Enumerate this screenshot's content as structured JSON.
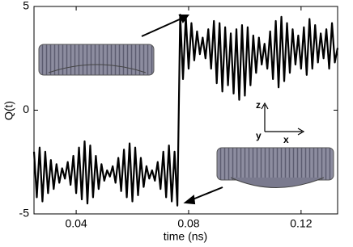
{
  "chart_data": {
    "type": "line",
    "xlabel": "time (ns)",
    "ylabel": "Q(t)",
    "x": [
      0.025,
      0.026,
      0.027,
      0.028,
      0.029,
      0.03,
      0.031,
      0.032,
      0.033,
      0.034,
      0.035,
      0.036,
      0.037,
      0.038,
      0.039,
      0.04,
      0.041,
      0.042,
      0.043,
      0.044,
      0.045,
      0.046,
      0.047,
      0.048,
      0.049,
      0.05,
      0.051,
      0.052,
      0.053,
      0.054,
      0.055,
      0.056,
      0.057,
      0.058,
      0.059,
      0.06,
      0.061,
      0.062,
      0.063,
      0.064,
      0.065,
      0.066,
      0.067,
      0.068,
      0.069,
      0.07,
      0.071,
      0.072,
      0.073,
      0.074,
      0.075,
      0.076,
      0.077,
      0.078,
      0.079,
      0.08,
      0.081,
      0.082,
      0.083,
      0.084,
      0.085,
      0.086,
      0.087,
      0.088,
      0.089,
      0.09,
      0.091,
      0.092,
      0.093,
      0.094,
      0.095,
      0.096,
      0.097,
      0.098,
      0.099,
      0.1,
      0.101,
      0.102,
      0.103,
      0.104,
      0.105,
      0.106,
      0.107,
      0.108,
      0.109,
      0.11,
      0.111,
      0.112,
      0.113,
      0.114,
      0.115,
      0.116,
      0.117,
      0.118,
      0.119,
      0.12,
      0.121,
      0.122,
      0.123,
      0.124,
      0.125,
      0.126,
      0.127,
      0.128,
      0.129,
      0.13,
      0.131,
      0.132,
      0.133
    ],
    "values": [
      -2.0,
      -4.2,
      -1.8,
      -4.4,
      -2.0,
      -4.0,
      -2.4,
      -3.8,
      -2.6,
      -3.5,
      -2.8,
      -3.3,
      -2.5,
      -3.6,
      -2.2,
      -4.0,
      -1.8,
      -4.3,
      -1.5,
      -4.5,
      -1.7,
      -4.2,
      -2.2,
      -3.8,
      -2.6,
      -3.4,
      -2.9,
      -3.2,
      -2.7,
      -3.5,
      -2.3,
      -3.9,
      -1.9,
      -4.2,
      -1.6,
      -4.4,
      -1.8,
      -4.1,
      -2.3,
      -3.7,
      -2.7,
      -3.3,
      -2.9,
      -3.4,
      -2.5,
      -3.8,
      -2.0,
      -4.2,
      -1.7,
      -4.4,
      -2.0,
      -4.6,
      4.6,
      1.5,
      4.5,
      2.0,
      4.2,
      2.4,
      3.8,
      2.7,
      3.5,
      2.5,
      3.9,
      2.0,
      4.3,
      1.3,
      4.2,
      0.9,
      4.0,
      1.2,
      3.7,
      0.8,
      3.9,
      0.5,
      4.1,
      0.7,
      4.0,
      1.2,
      3.6,
      1.8,
      3.5,
      2.2,
      3.2,
      2.0,
      3.8,
      1.5,
      4.3,
      1.1,
      4.5,
      1.4,
      4.2,
      1.8,
      3.9,
      2.2,
      3.6,
      2.0,
      4.0,
      1.7,
      4.4,
      2.0,
      4.1,
      2.3,
      3.7,
      2.5,
      3.9,
      2.0,
      4.2,
      2.3,
      3.0
    ],
    "color": "#000000",
    "xlim": [
      0.025,
      0.133
    ],
    "xticks": [
      0.04,
      0.08,
      0.12
    ],
    "ylim": [
      -5,
      5
    ],
    "yticks": [
      -5,
      0,
      5
    ],
    "annotations": [
      "z",
      "y",
      "x"
    ]
  }
}
